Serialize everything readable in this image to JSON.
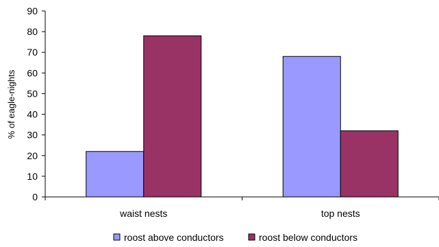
{
  "chart_data": {
    "type": "bar",
    "title": "",
    "xlabel": "",
    "ylabel": "% of eagle-nights",
    "ylim": [
      0,
      90
    ],
    "yticks": [
      0,
      10,
      20,
      30,
      40,
      50,
      60,
      70,
      80,
      90
    ],
    "grid": false,
    "legend_position": "bottom",
    "categories": [
      "waist nests",
      "top nests"
    ],
    "series": [
      {
        "name": "roost above conductors",
        "color": "#9999ff",
        "values": [
          22,
          68
        ]
      },
      {
        "name": "roost below conductors",
        "color": "#993366",
        "values": [
          78,
          32
        ]
      }
    ]
  }
}
